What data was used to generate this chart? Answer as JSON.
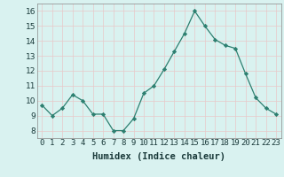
{
  "x": [
    0,
    1,
    2,
    3,
    4,
    5,
    6,
    7,
    8,
    9,
    10,
    11,
    12,
    13,
    14,
    15,
    16,
    17,
    18,
    19,
    20,
    21,
    22,
    23
  ],
  "y": [
    9.7,
    9.0,
    9.5,
    10.4,
    10.0,
    9.1,
    9.1,
    8.0,
    8.0,
    8.8,
    10.5,
    11.0,
    12.1,
    13.3,
    14.5,
    16.0,
    15.0,
    14.1,
    13.7,
    13.5,
    11.8,
    10.2,
    9.5,
    9.1
  ],
  "xlim": [
    -0.5,
    23.5
  ],
  "ylim": [
    7.5,
    16.5
  ],
  "yticks": [
    8,
    9,
    10,
    11,
    12,
    13,
    14,
    15,
    16
  ],
  "xtick_labels": [
    "0",
    "1",
    "2",
    "3",
    "4",
    "5",
    "6",
    "7",
    "8",
    "9",
    "10",
    "11",
    "12",
    "13",
    "14",
    "15",
    "16",
    "17",
    "18",
    "19",
    "20",
    "21",
    "22",
    "23"
  ],
  "xlabel": "Humidex (Indice chaleur)",
  "line_color": "#2d7f70",
  "marker_color": "#2d7f70",
  "bg_color": "#d9f2f0",
  "grid_color": "#e8c8c8",
  "xlabel_fontsize": 7.5,
  "tick_fontsize": 6.5
}
